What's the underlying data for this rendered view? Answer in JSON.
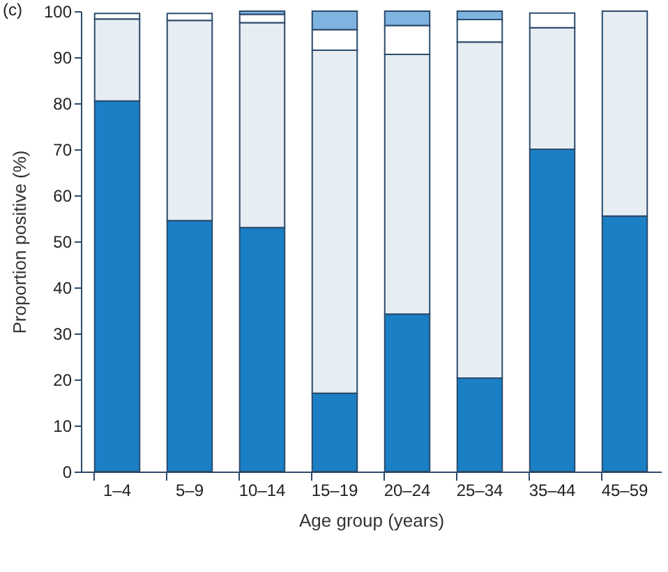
{
  "chart_data": {
    "type": "bar",
    "stacked": true,
    "annotations": [
      "(c)"
    ],
    "xlabel": "Age group (years)",
    "ylabel": "Proportion positive (%)",
    "categories": [
      "1–4",
      "5–9",
      "10–14",
      "15–19",
      "20–24",
      "25–34",
      "35–44",
      "45–59"
    ],
    "series": [
      {
        "color": "#1a7fc4",
        "values": [
          80.5,
          54.5,
          53,
          17,
          34.2,
          20.3,
          70,
          55.5
        ]
      },
      {
        "color": "#e6edf3",
        "values": [
          17.8,
          43.5,
          44.5,
          74.5,
          56.4,
          73,
          26.4,
          44.5
        ]
      },
      {
        "color": "#ffffff",
        "values": [
          1.2,
          1.5,
          1.8,
          4.5,
          6.3,
          4.9,
          3.2,
          0
        ]
      },
      {
        "color": "#7fb3e0",
        "values": [
          0,
          0,
          0.7,
          4,
          3.1,
          1.8,
          0,
          0
        ]
      }
    ],
    "ylim": [
      0,
      100
    ],
    "yticks": [
      0,
      10,
      20,
      30,
      40,
      50,
      60,
      70,
      80,
      90,
      100
    ],
    "grid": false,
    "legend": false
  }
}
